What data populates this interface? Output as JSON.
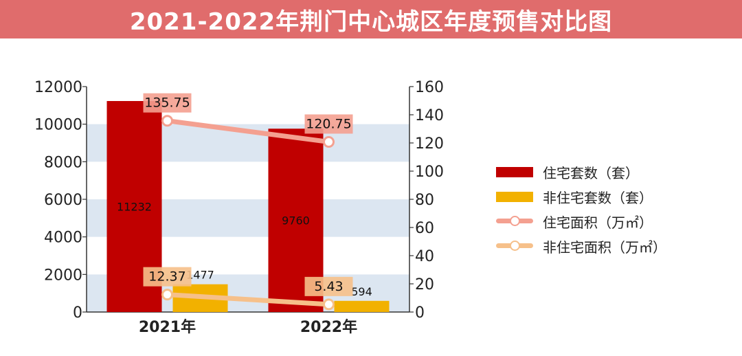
{
  "title": "2021-2022年荆门中心城区年度预售对比图",
  "colors": {
    "banner": "#e06c6c",
    "residential_units": "#c00000",
    "non_residential_units": "#f2b100",
    "residential_area": "#f4a090",
    "non_residential_area": "#f6c08a",
    "band": "#dce6f1"
  },
  "legend": [
    {
      "label": "住宅套数（套）",
      "type": "bar",
      "color": "#c00000"
    },
    {
      "label": "非住宅套数（套）",
      "type": "bar",
      "color": "#f2b100"
    },
    {
      "label": "住宅面积（万㎡）",
      "type": "line",
      "color": "#f4a090"
    },
    {
      "label": "非住宅面积（万㎡）",
      "type": "line",
      "color": "#f6c08a"
    }
  ],
  "chart_data": {
    "type": "bar",
    "categories": [
      "2021年",
      "2022年"
    ],
    "series": [
      {
        "name": "住宅套数（套）",
        "kind": "bar",
        "axis": "left",
        "values": [
          11232,
          9760
        ],
        "labels": [
          "11232",
          "9760"
        ]
      },
      {
        "name": "非住宅套数（套）",
        "kind": "bar",
        "axis": "left",
        "values": [
          1477,
          594
        ],
        "labels": [
          "1477",
          "594"
        ]
      },
      {
        "name": "住宅面积（万㎡）",
        "kind": "line",
        "axis": "right",
        "values": [
          135.75,
          120.75
        ],
        "labels": [
          "135.75",
          "120.75"
        ]
      },
      {
        "name": "非住宅面积（万㎡）",
        "kind": "line",
        "axis": "right",
        "values": [
          12.37,
          5.43
        ],
        "labels": [
          "12.37",
          "5.43"
        ]
      }
    ],
    "y_left": {
      "min": 0,
      "max": 12000,
      "ticks": [
        "0",
        "2000",
        "4000",
        "6000",
        "8000",
        "10000",
        "12000"
      ]
    },
    "y_right": {
      "min": 0,
      "max": 160,
      "ticks": [
        "0",
        "20",
        "40",
        "60",
        "80",
        "100",
        "120",
        "140",
        "160"
      ]
    },
    "grid": "alternating bands",
    "legend_position": "right"
  }
}
